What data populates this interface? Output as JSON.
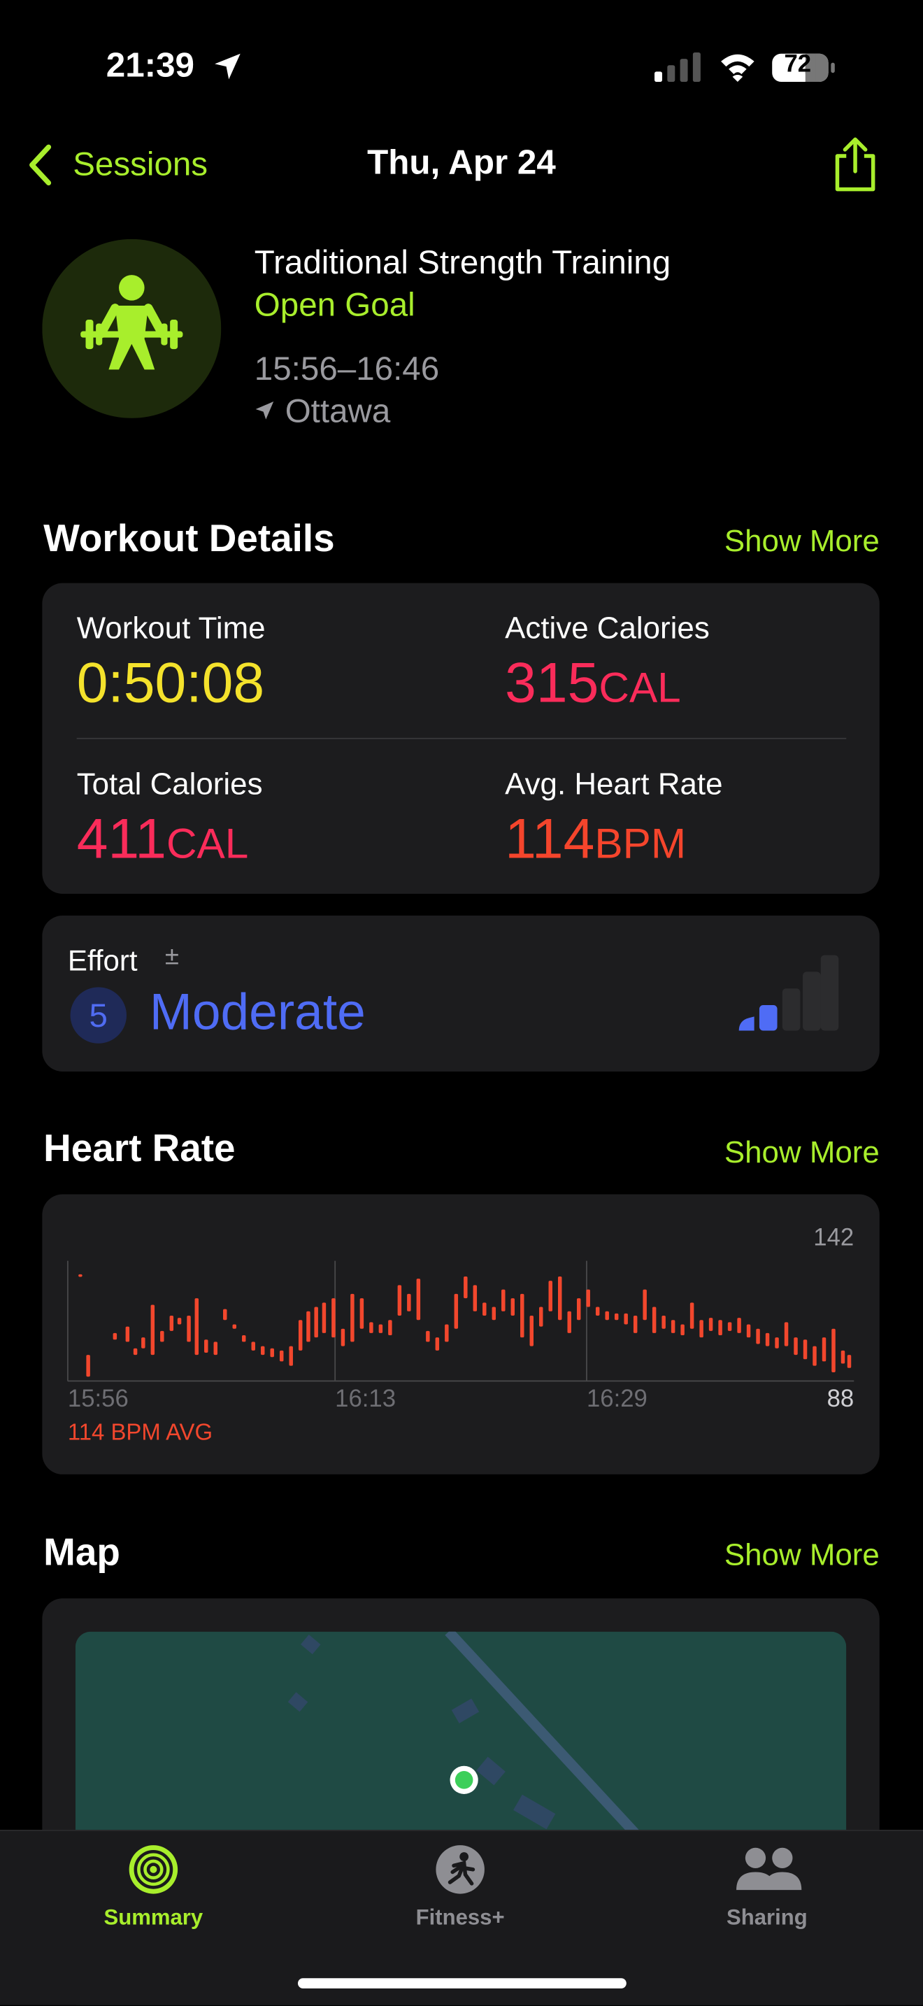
{
  "status": {
    "time": "21:39",
    "battery": "72"
  },
  "nav": {
    "back": "Sessions",
    "title": "Thu, Apr 24"
  },
  "workout": {
    "name": "Traditional Strength Training",
    "goal": "Open Goal",
    "time_range": "15:56–16:46",
    "location": "Ottawa"
  },
  "details": {
    "heading": "Workout Details",
    "show_more": "Show More",
    "metrics": [
      {
        "label": "Workout Time",
        "value": "0:50:08"
      },
      {
        "label": "Active Calories",
        "value": "315",
        "unit": "CAL"
      },
      {
        "label": "Total Calories",
        "value": "411",
        "unit": "CAL"
      },
      {
        "label": "Avg. Heart Rate",
        "value": "114",
        "unit": "BPM"
      }
    ]
  },
  "effort": {
    "label": "Effort",
    "symbol": "±",
    "level": "5",
    "text": "Moderate"
  },
  "heart_rate": {
    "heading": "Heart Rate",
    "show_more": "Show More",
    "chart": {
      "type": "range",
      "color": "#f2472d",
      "avg_label": "114 BPM AVG",
      "xlim": [
        956,
        1006
      ],
      "xticks": [
        {
          "value": 956,
          "label": "15:56"
        },
        {
          "value": 973,
          "label": "16:13"
        },
        {
          "value": 989,
          "label": "16:29"
        }
      ],
      "ylim": [
        88,
        142
      ],
      "yticks": [
        88,
        142
      ],
      "x": [
        956.8,
        957.3,
        959,
        959.8,
        960.3,
        960.8,
        961.4,
        962,
        962.6,
        963.1,
        963.7,
        964.2,
        964.8,
        965.4,
        966,
        966.6,
        967.2,
        967.8,
        968.4,
        969,
        969.6,
        970.2,
        970.8,
        971.3,
        971.8,
        972.3,
        972.9,
        973.5,
        974.1,
        974.7,
        975.3,
        975.9,
        976.5,
        977.1,
        977.7,
        978.3,
        978.9,
        979.5,
        980.1,
        980.7,
        981.3,
        981.9,
        982.5,
        983.1,
        983.7,
        984.3,
        984.9,
        985.5,
        986.1,
        986.7,
        987.3,
        987.9,
        988.5,
        989.1,
        989.7,
        990.3,
        990.9,
        991.5,
        992.1,
        992.7,
        993.3,
        993.9,
        994.5,
        995.1,
        995.7,
        996.3,
        996.9,
        997.5,
        998.1,
        998.7,
        999.3,
        999.9,
        1000.5,
        1001.1,
        1001.7,
        1002.3,
        1002.9,
        1003.5,
        1004.1,
        1004.7,
        1005.3,
        1005.7
      ],
      "low": [
        136,
        90,
        107,
        106,
        100,
        103,
        100,
        106,
        111,
        114,
        106,
        100,
        101,
        100,
        116,
        112,
        106,
        102,
        100,
        99,
        97,
        95,
        102,
        106,
        108,
        110,
        108,
        104,
        106,
        112,
        110,
        110,
        109,
        118,
        120,
        116,
        106,
        102,
        106,
        112,
        126,
        120,
        118,
        116,
        120,
        118,
        108,
        104,
        113,
        120,
        116,
        110,
        116,
        122,
        118,
        116,
        116,
        114,
        110,
        116,
        110,
        112,
        110,
        109,
        112,
        108,
        111,
        109,
        111,
        110,
        108,
        105,
        104,
        103,
        104,
        100,
        98,
        95,
        97,
        92,
        96,
        94
      ],
      "high": [
        137,
        100,
        110,
        113,
        103,
        108,
        123,
        111,
        118,
        117,
        118,
        126,
        107,
        106,
        121,
        114,
        109,
        106,
        104,
        103,
        102,
        104,
        116,
        120,
        122,
        124,
        126,
        112,
        128,
        126,
        115,
        114,
        116,
        132,
        128,
        135,
        111,
        108,
        114,
        128,
        136,
        132,
        124,
        122,
        130,
        126,
        128,
        118,
        122,
        134,
        136,
        120,
        126,
        130,
        122,
        120,
        119,
        119,
        118,
        130,
        122,
        118,
        116,
        114,
        124,
        116,
        117,
        116,
        115,
        117,
        114,
        112,
        110,
        108,
        115,
        108,
        107,
        104,
        108,
        112,
        102,
        100
      ]
    }
  },
  "map": {
    "heading": "Map",
    "show_more": "Show More"
  },
  "tabs": [
    "Summary",
    "Fitness+",
    "Sharing"
  ]
}
